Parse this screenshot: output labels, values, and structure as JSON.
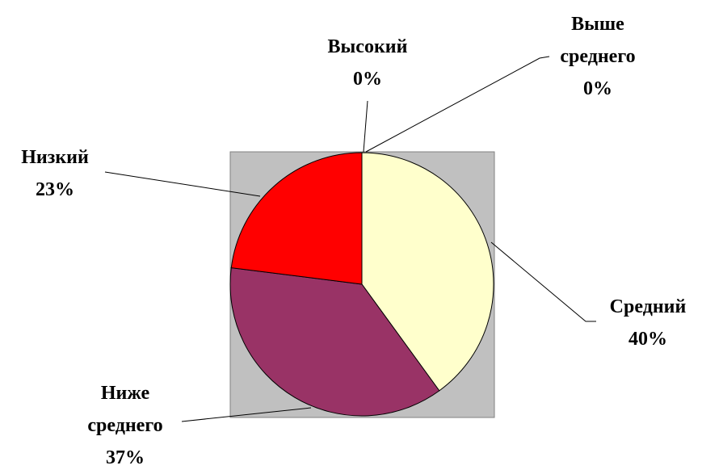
{
  "chart_data": {
    "type": "pie",
    "categories": [
      "Высокий",
      "Выше среднего",
      "Средний",
      "Ниже среднего",
      "Низкий"
    ],
    "values": [
      0,
      0,
      40,
      37,
      23
    ],
    "value_labels": [
      "0%",
      "0%",
      "40%",
      "37%",
      "23%"
    ],
    "colors": [
      "#9999FF",
      "#CCFFFF",
      "#FFFFCC",
      "#993366",
      "#FF0000"
    ],
    "plot_background": "#C0C0C0"
  }
}
